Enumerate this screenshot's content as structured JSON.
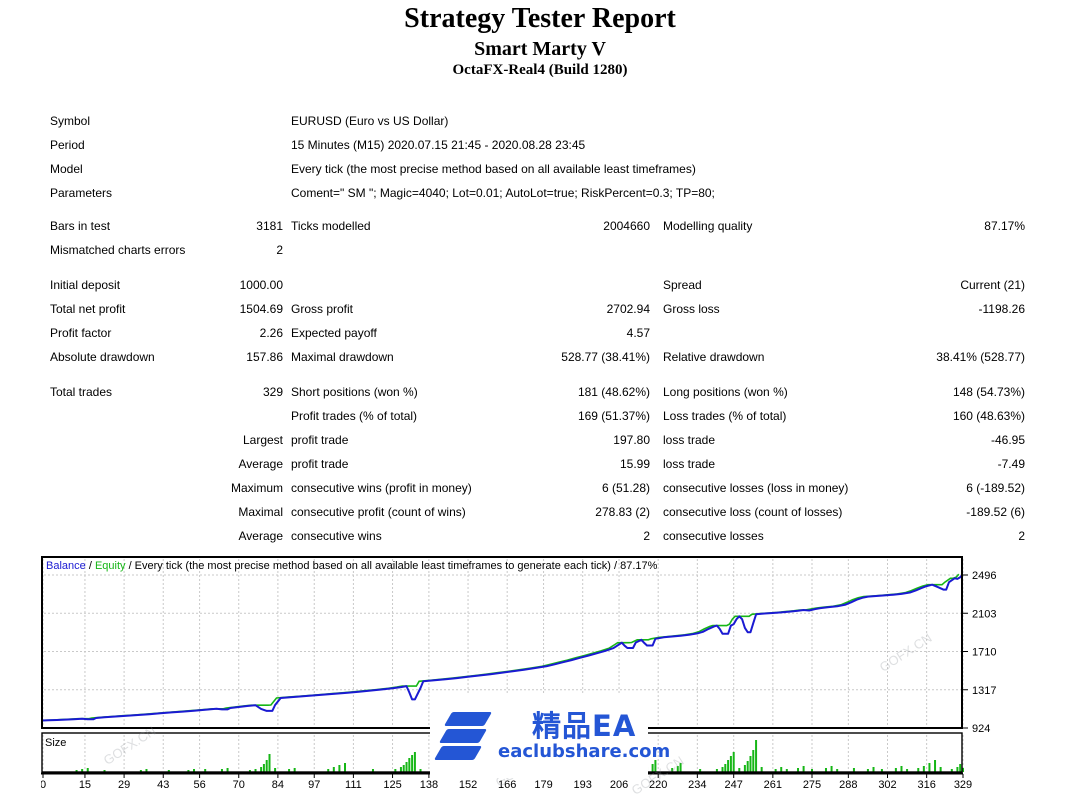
{
  "header": {
    "title": "Strategy Tester Report",
    "subtitle": "Smart Marty V",
    "server": "OctaFX-Real4 (Build 1280)"
  },
  "table": {
    "sections": [
      [
        {
          "a": "Symbol",
          "b": "",
          "c": "EURUSD (Euro vs US Dollar)",
          "d": "",
          "e": "",
          "f": ""
        },
        {
          "a": "Period",
          "b": "",
          "c": "15 Minutes (M15) 2020.07.15 21:45 - 2020.08.28 23:45",
          "d": "",
          "e": "",
          "f": ""
        },
        {
          "a": "Model",
          "b": "",
          "c": "Every tick (the most precise method based on all available least timeframes)",
          "d": "",
          "e": "",
          "f": ""
        },
        {
          "a": "Parameters",
          "b": "",
          "c": "Coment=\" SM \"; Magic=4040; Lot=0.01; AutoLot=true; RiskPercent=0.3; TP=80;",
          "d": "",
          "e": "",
          "f": ""
        }
      ],
      [
        {
          "a": "Bars in test",
          "b": "3181",
          "c": "Ticks modelled",
          "d": "2004660",
          "e": "Modelling quality",
          "f": "87.17%"
        },
        {
          "a": "Mismatched charts errors",
          "b": "2",
          "c": "",
          "d": "",
          "e": "",
          "f": ""
        }
      ],
      [
        {
          "a": "Initial deposit",
          "b": "1000.00",
          "c": "",
          "d": "",
          "e": "Spread",
          "f": "Current (21)"
        },
        {
          "a": "Total net profit",
          "b": "1504.69",
          "c": "Gross profit",
          "d": "2702.94",
          "e": "Gross loss",
          "f": "-1198.26"
        },
        {
          "a": "Profit factor",
          "b": "2.26",
          "c": "Expected payoff",
          "d": "4.57",
          "e": "",
          "f": ""
        },
        {
          "a": "Absolute drawdown",
          "b": "157.86",
          "c": "Maximal drawdown",
          "d": "528.77 (38.41%)",
          "e": "Relative drawdown",
          "f": "38.41% (528.77)"
        }
      ],
      [
        {
          "a": "Total trades",
          "b": "329",
          "c": "Short positions (won %)",
          "d": "181 (48.62%)",
          "e": "Long positions (won %)",
          "f": "148 (54.73%)"
        },
        {
          "a": "",
          "b": "",
          "c": "Profit trades (% of total)",
          "d": "169 (51.37%)",
          "e": "Loss trades (% of total)",
          "f": "160 (48.63%)"
        },
        {
          "a": "",
          "b": "Largest",
          "c": "profit trade",
          "d": "197.80",
          "e": "loss trade",
          "f": "-46.95"
        },
        {
          "a": "",
          "b": "Average",
          "c": "profit trade",
          "d": "15.99",
          "e": "loss trade",
          "f": "-7.49"
        },
        {
          "a": "",
          "b": "Maximum",
          "c": "consecutive wins (profit in money)",
          "d": "6 (51.28)",
          "e": "consecutive losses (loss in money)",
          "f": "6 (-189.52)"
        },
        {
          "a": "",
          "b": "Maximal",
          "c": "consecutive profit (count of wins)",
          "d": "278.83 (2)",
          "e": "consecutive loss (count of losses)",
          "f": "-189.52 (6)"
        },
        {
          "a": "",
          "b": "Average",
          "c": "consecutive wins",
          "d": "2",
          "e": "consecutive losses",
          "f": "2"
        }
      ]
    ]
  },
  "chart_data": {
    "type": "line",
    "legend": {
      "balance_label": "Balance",
      "equity_label": "Equity",
      "separator": " / ",
      "description": "Every tick (the most precise method based on all available least timeframes to generate each tick) / 87.17%"
    },
    "size_panel_label": "Size",
    "ylabel": "",
    "xlabel": "",
    "ylim": [
      924,
      2496
    ],
    "y_ticks": [
      2496,
      2103,
      1710,
      1317,
      924
    ],
    "x_ticks": [
      0,
      15,
      29,
      43,
      56,
      70,
      84,
      97,
      111,
      125,
      138,
      152,
      166,
      179,
      193,
      206,
      220,
      234,
      247,
      261,
      275,
      288,
      302,
      316,
      329
    ],
    "series": [
      {
        "name": "Balance",
        "color": "#1a1ad2"
      },
      {
        "name": "Equity",
        "color": "#16b616"
      }
    ],
    "balance": [
      [
        -1,
        1000
      ],
      [
        2,
        1003
      ],
      [
        5,
        1006
      ],
      [
        8,
        1010
      ],
      [
        11,
        1014
      ],
      [
        14,
        1020
      ],
      [
        16,
        1013
      ],
      [
        18,
        1013
      ],
      [
        19,
        1027
      ],
      [
        22,
        1034
      ],
      [
        26,
        1042
      ],
      [
        30,
        1050
      ],
      [
        34,
        1058
      ],
      [
        38,
        1066
      ],
      [
        42,
        1075
      ],
      [
        46,
        1084
      ],
      [
        50,
        1093
      ],
      [
        54,
        1102
      ],
      [
        58,
        1111
      ],
      [
        62,
        1121
      ],
      [
        64,
        1115
      ],
      [
        66,
        1115
      ],
      [
        67,
        1130
      ],
      [
        70,
        1140
      ],
      [
        73,
        1150
      ],
      [
        76,
        1158
      ],
      [
        78,
        1120
      ],
      [
        80,
        1100
      ],
      [
        82,
        1100
      ],
      [
        83,
        1160
      ],
      [
        85,
        1232
      ],
      [
        89,
        1241
      ],
      [
        93,
        1250
      ],
      [
        97,
        1259
      ],
      [
        101,
        1268
      ],
      [
        105,
        1277
      ],
      [
        109,
        1287
      ],
      [
        113,
        1297
      ],
      [
        117,
        1308
      ],
      [
        121,
        1320
      ],
      [
        125,
        1332
      ],
      [
        128,
        1344
      ],
      [
        130,
        1354
      ],
      [
        131,
        1290
      ],
      [
        132,
        1218
      ],
      [
        133,
        1218
      ],
      [
        135,
        1335
      ],
      [
        136,
        1404
      ],
      [
        140,
        1414
      ],
      [
        144,
        1425
      ],
      [
        148,
        1437
      ],
      [
        152,
        1450
      ],
      [
        156,
        1463
      ],
      [
        160,
        1477
      ],
      [
        164,
        1492
      ],
      [
        168,
        1507
      ],
      [
        172,
        1523
      ],
      [
        176,
        1540
      ],
      [
        180,
        1558
      ],
      [
        183,
        1578
      ],
      [
        186,
        1600
      ],
      [
        189,
        1622
      ],
      [
        192,
        1645
      ],
      [
        195,
        1668
      ],
      [
        198,
        1692
      ],
      [
        201,
        1716
      ],
      [
        204,
        1745
      ],
      [
        206,
        1782
      ],
      [
        207,
        1800
      ],
      [
        208,
        1770
      ],
      [
        209,
        1746
      ],
      [
        211,
        1746
      ],
      [
        212,
        1802
      ],
      [
        214,
        1830
      ],
      [
        215,
        1798
      ],
      [
        216,
        1772
      ],
      [
        218,
        1772
      ],
      [
        219,
        1840
      ],
      [
        222,
        1856
      ],
      [
        225,
        1864
      ],
      [
        228,
        1872
      ],
      [
        231,
        1882
      ],
      [
        234,
        1896
      ],
      [
        236,
        1912
      ],
      [
        238,
        1942
      ],
      [
        240,
        1968
      ],
      [
        241,
        1976
      ],
      [
        242,
        1942
      ],
      [
        243,
        1892
      ],
      [
        245,
        1892
      ],
      [
        246,
        1976
      ],
      [
        247,
        1992
      ],
      [
        248,
        2042
      ],
      [
        249,
        2072
      ],
      [
        250,
        2042
      ],
      [
        251,
        1952
      ],
      [
        252,
        1908
      ],
      [
        253,
        1908
      ],
      [
        254,
        2002
      ],
      [
        255,
        2092
      ],
      [
        258,
        2100
      ],
      [
        261,
        2106
      ],
      [
        264,
        2112
      ],
      [
        267,
        2120
      ],
      [
        270,
        2128
      ],
      [
        272,
        2136
      ],
      [
        274,
        2131
      ],
      [
        276,
        2146
      ],
      [
        278,
        2156
      ],
      [
        281,
        2166
      ],
      [
        284,
        2174
      ],
      [
        287,
        2192
      ],
      [
        289,
        2216
      ],
      [
        291,
        2242
      ],
      [
        293,
        2262
      ],
      [
        295,
        2274
      ],
      [
        298,
        2280
      ],
      [
        301,
        2286
      ],
      [
        304,
        2294
      ],
      [
        307,
        2302
      ],
      [
        310,
        2316
      ],
      [
        312,
        2336
      ],
      [
        314,
        2360
      ],
      [
        316,
        2382
      ],
      [
        318,
        2396
      ],
      [
        320,
        2372
      ],
      [
        322,
        2346
      ],
      [
        323,
        2346
      ],
      [
        324,
        2422
      ],
      [
        326,
        2462
      ],
      [
        327,
        2456
      ],
      [
        328,
        2472
      ],
      [
        329,
        2504
      ]
    ],
    "size_bars": [
      [
        12,
        2
      ],
      [
        14,
        3
      ],
      [
        16,
        4
      ],
      [
        22,
        2
      ],
      [
        35,
        2
      ],
      [
        37,
        3
      ],
      [
        45,
        2
      ],
      [
        52,
        2
      ],
      [
        54,
        3
      ],
      [
        58,
        3
      ],
      [
        64,
        3
      ],
      [
        66,
        4
      ],
      [
        74,
        2
      ],
      [
        76,
        3
      ],
      [
        78,
        5
      ],
      [
        79,
        8
      ],
      [
        80,
        12
      ],
      [
        81,
        18
      ],
      [
        83,
        4
      ],
      [
        88,
        3
      ],
      [
        90,
        4
      ],
      [
        102,
        3
      ],
      [
        104,
        5
      ],
      [
        106,
        7
      ],
      [
        108,
        9
      ],
      [
        118,
        3
      ],
      [
        126,
        3
      ],
      [
        128,
        5
      ],
      [
        129,
        7
      ],
      [
        130,
        10
      ],
      [
        131,
        14
      ],
      [
        132,
        17
      ],
      [
        133,
        20
      ],
      [
        135,
        3
      ],
      [
        141,
        4
      ],
      [
        143,
        6
      ],
      [
        145,
        9
      ],
      [
        147,
        12
      ],
      [
        149,
        5
      ],
      [
        160,
        4
      ],
      [
        162,
        6
      ],
      [
        164,
        8
      ],
      [
        170,
        3
      ],
      [
        175,
        5
      ],
      [
        180,
        7
      ],
      [
        185,
        4
      ],
      [
        190,
        6
      ],
      [
        195,
        8
      ],
      [
        200,
        10
      ],
      [
        207,
        4
      ],
      [
        209,
        7
      ],
      [
        211,
        10
      ],
      [
        214,
        3
      ],
      [
        216,
        5
      ],
      [
        218,
        8
      ],
      [
        219,
        12
      ],
      [
        225,
        4
      ],
      [
        227,
        6
      ],
      [
        228,
        9
      ],
      [
        235,
        3
      ],
      [
        241,
        3
      ],
      [
        243,
        5
      ],
      [
        244,
        8
      ],
      [
        245,
        12
      ],
      [
        246,
        16
      ],
      [
        247,
        20
      ],
      [
        249,
        4
      ],
      [
        251,
        7
      ],
      [
        252,
        11
      ],
      [
        253,
        16
      ],
      [
        254,
        22
      ],
      [
        255,
        32
      ],
      [
        257,
        5
      ],
      [
        262,
        3
      ],
      [
        264,
        5
      ],
      [
        266,
        3
      ],
      [
        270,
        4
      ],
      [
        272,
        6
      ],
      [
        275,
        3
      ],
      [
        280,
        4
      ],
      [
        282,
        6
      ],
      [
        284,
        3
      ],
      [
        290,
        4
      ],
      [
        295,
        3
      ],
      [
        297,
        5
      ],
      [
        300,
        3
      ],
      [
        305,
        4
      ],
      [
        307,
        6
      ],
      [
        309,
        3
      ],
      [
        313,
        4
      ],
      [
        315,
        6
      ],
      [
        317,
        9
      ],
      [
        319,
        12
      ],
      [
        321,
        5
      ],
      [
        325,
        3
      ],
      [
        327,
        5
      ],
      [
        328,
        8
      ],
      [
        329,
        4
      ]
    ],
    "colors": {
      "balance": "#1a1ad2",
      "equity": "#16b616",
      "size_bar": "#16b616",
      "grid": "#c9c9c9",
      "axis": "#000000"
    }
  },
  "watermark": {
    "brand": "精品EA",
    "site": "eaclubshare.com",
    "blue": "#2456d5"
  },
  "bg_watermark": {
    "text": "GOFX.CN"
  }
}
